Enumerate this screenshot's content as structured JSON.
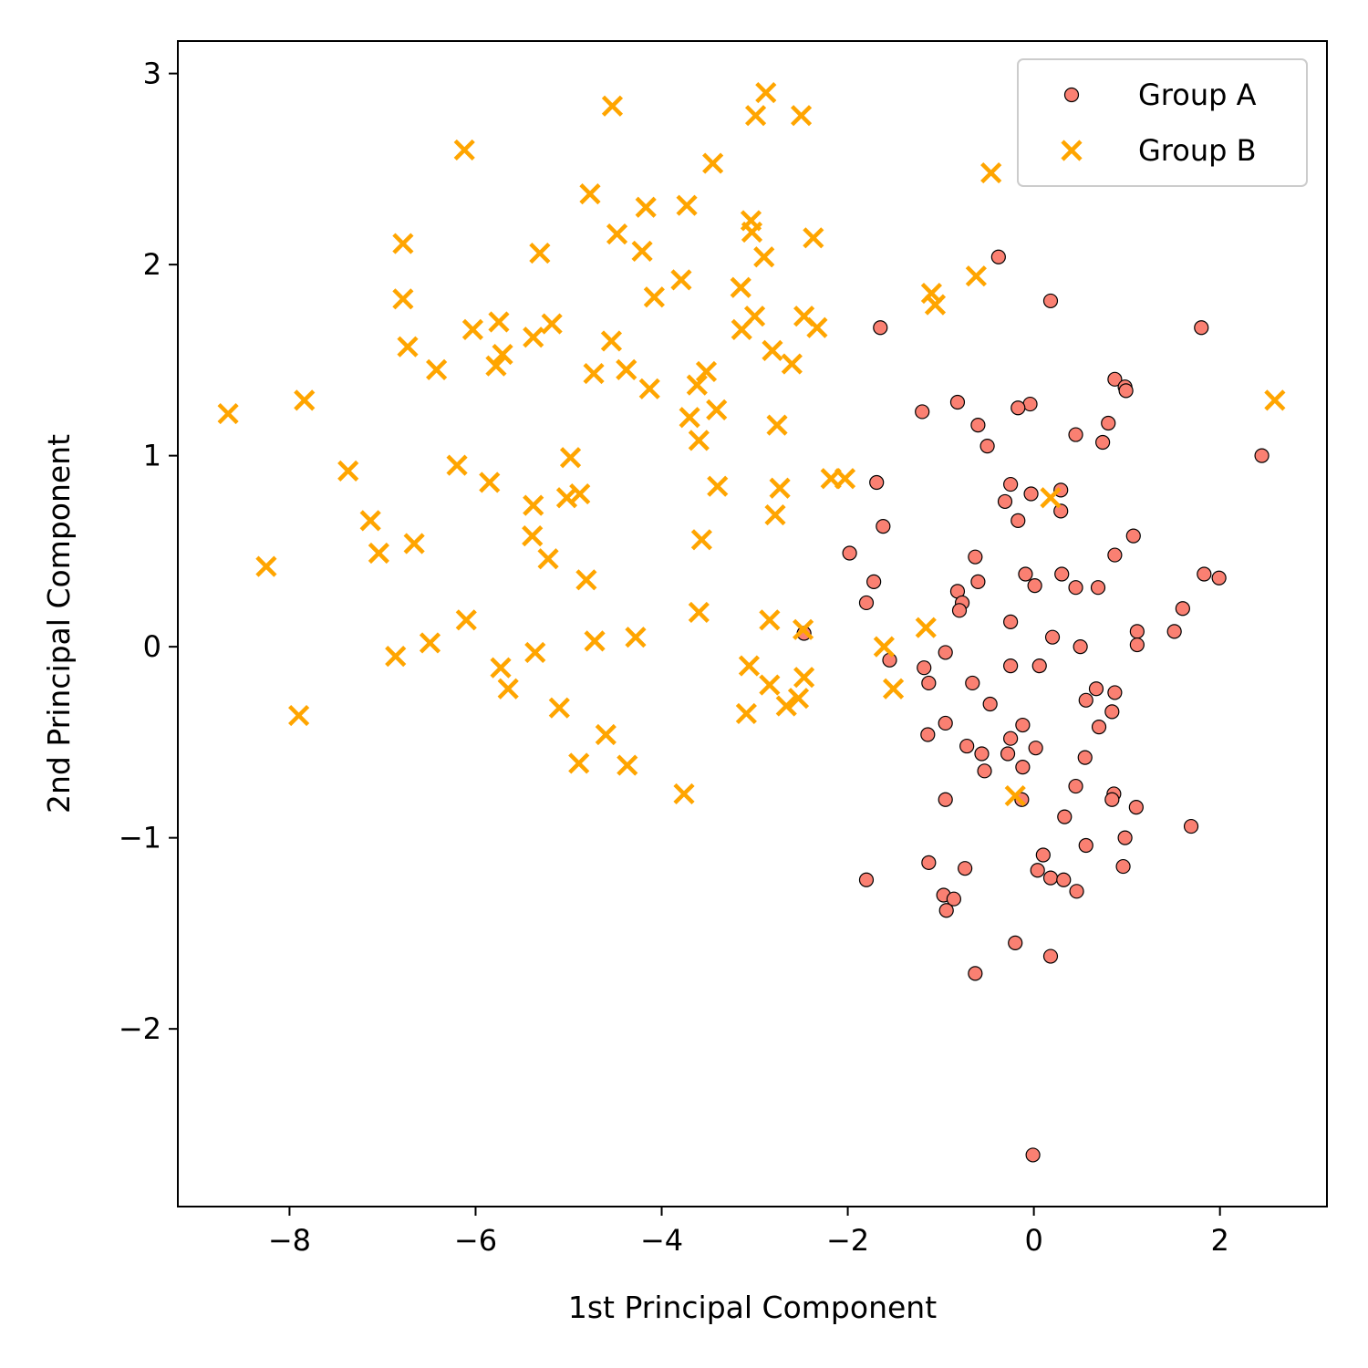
{
  "chart_data": {
    "type": "scatter",
    "xlabel": "1st Principal Component",
    "ylabel": "2nd Principal Component",
    "xlim": [
      -9.2,
      3.15
    ],
    "ylim": [
      -2.93,
      3.17
    ],
    "xticks": [
      -8,
      -6,
      -4,
      -2,
      0,
      2
    ],
    "yticks": [
      -2,
      -1,
      0,
      1,
      2,
      3
    ],
    "xtick_labels": [
      "−8",
      "−6",
      "−4",
      "−2",
      "0",
      "2"
    ],
    "ytick_labels": [
      "−2",
      "−1",
      "0",
      "1",
      "2",
      "3"
    ],
    "grid": false,
    "legend": {
      "position": "top-right"
    },
    "series": [
      {
        "name": "Group A",
        "marker": "circle",
        "color": "#fa8072",
        "edge_color": "#000000",
        "points": [
          [
            -0.38,
            2.04
          ],
          [
            0.18,
            1.81
          ],
          [
            1.8,
            1.67
          ],
          [
            -1.65,
            1.67
          ],
          [
            0.87,
            1.4
          ],
          [
            0.98,
            1.36
          ],
          [
            0.99,
            1.34
          ],
          [
            -0.82,
            1.28
          ],
          [
            -0.04,
            1.27
          ],
          [
            -0.17,
            1.25
          ],
          [
            -1.2,
            1.23
          ],
          [
            -0.6,
            1.16
          ],
          [
            0.8,
            1.17
          ],
          [
            0.45,
            1.11
          ],
          [
            0.74,
            1.07
          ],
          [
            -0.5,
            1.05
          ],
          [
            2.45,
            1.0
          ],
          [
            -1.69,
            0.86
          ],
          [
            -0.25,
            0.85
          ],
          [
            0.29,
            0.82
          ],
          [
            -0.03,
            0.8
          ],
          [
            -0.31,
            0.76
          ],
          [
            0.29,
            0.71
          ],
          [
            -0.17,
            0.66
          ],
          [
            -1.62,
            0.63
          ],
          [
            1.07,
            0.58
          ],
          [
            -1.98,
            0.49
          ],
          [
            0.87,
            0.48
          ],
          [
            -0.63,
            0.47
          ],
          [
            -0.09,
            0.38
          ],
          [
            0.3,
            0.38
          ],
          [
            1.83,
            0.38
          ],
          [
            1.99,
            0.36
          ],
          [
            -0.6,
            0.34
          ],
          [
            -1.72,
            0.34
          ],
          [
            0.01,
            0.32
          ],
          [
            0.45,
            0.31
          ],
          [
            0.69,
            0.31
          ],
          [
            -0.82,
            0.29
          ],
          [
            -0.77,
            0.23
          ],
          [
            -1.8,
            0.23
          ],
          [
            -0.8,
            0.19
          ],
          [
            1.6,
            0.2
          ],
          [
            -0.25,
            0.13
          ],
          [
            1.51,
            0.08
          ],
          [
            1.11,
            0.08
          ],
          [
            0.2,
            0.05
          ],
          [
            1.11,
            0.01
          ],
          [
            0.5,
            0.0
          ],
          [
            -0.95,
            -0.03
          ],
          [
            -1.55,
            -0.07
          ],
          [
            -1.18,
            -0.11
          ],
          [
            -0.25,
            -0.1
          ],
          [
            0.06,
            -0.1
          ],
          [
            -1.13,
            -0.19
          ],
          [
            -0.66,
            -0.19
          ],
          [
            0.67,
            -0.22
          ],
          [
            0.87,
            -0.24
          ],
          [
            0.56,
            -0.28
          ],
          [
            -0.47,
            -0.3
          ],
          [
            0.84,
            -0.34
          ],
          [
            -0.95,
            -0.4
          ],
          [
            -0.12,
            -0.41
          ],
          [
            0.7,
            -0.42
          ],
          [
            -1.14,
            -0.46
          ],
          [
            -0.25,
            -0.48
          ],
          [
            -0.72,
            -0.52
          ],
          [
            0.02,
            -0.53
          ],
          [
            -0.56,
            -0.56
          ],
          [
            -0.28,
            -0.56
          ],
          [
            0.55,
            -0.58
          ],
          [
            -0.12,
            -0.63
          ],
          [
            -0.53,
            -0.65
          ],
          [
            0.45,
            -0.73
          ],
          [
            0.86,
            -0.77
          ],
          [
            -0.13,
            -0.8
          ],
          [
            -0.95,
            -0.8
          ],
          [
            0.84,
            -0.8
          ],
          [
            1.1,
            -0.84
          ],
          [
            1.69,
            -0.94
          ],
          [
            0.33,
            -0.89
          ],
          [
            0.98,
            -1.0
          ],
          [
            0.56,
            -1.04
          ],
          [
            0.1,
            -1.09
          ],
          [
            -1.13,
            -1.13
          ],
          [
            0.96,
            -1.15
          ],
          [
            -0.74,
            -1.16
          ],
          [
            0.04,
            -1.17
          ],
          [
            -1.8,
            -1.22
          ],
          [
            0.18,
            -1.21
          ],
          [
            0.32,
            -1.22
          ],
          [
            0.46,
            -1.28
          ],
          [
            -0.97,
            -1.3
          ],
          [
            -0.86,
            -1.32
          ],
          [
            -0.94,
            -1.38
          ],
          [
            -0.2,
            -1.55
          ],
          [
            0.18,
            -1.62
          ],
          [
            -0.63,
            -1.71
          ],
          [
            -0.01,
            -2.66
          ],
          [
            -2.47,
            0.07
          ]
        ]
      },
      {
        "name": "Group B",
        "marker": "x",
        "color": "#ffa500",
        "points": [
          [
            -2.88,
            2.9
          ],
          [
            -4.53,
            2.83
          ],
          [
            -2.99,
            2.78
          ],
          [
            -2.5,
            2.78
          ],
          [
            -6.12,
            2.6
          ],
          [
            -3.45,
            2.53
          ],
          [
            -0.46,
            2.48
          ],
          [
            -4.77,
            2.37
          ],
          [
            -3.73,
            2.31
          ],
          [
            -4.17,
            2.3
          ],
          [
            -3.04,
            2.23
          ],
          [
            -3.03,
            2.17
          ],
          [
            -4.48,
            2.16
          ],
          [
            -2.37,
            2.14
          ],
          [
            -6.78,
            2.11
          ],
          [
            -4.21,
            2.07
          ],
          [
            -5.31,
            2.06
          ],
          [
            -2.9,
            2.04
          ],
          [
            -0.62,
            1.94
          ],
          [
            -3.79,
            1.92
          ],
          [
            -3.15,
            1.88
          ],
          [
            -1.1,
            1.85
          ],
          [
            -1.06,
            1.79
          ],
          [
            -6.78,
            1.82
          ],
          [
            -4.08,
            1.83
          ],
          [
            -3.0,
            1.73
          ],
          [
            -2.47,
            1.73
          ],
          [
            -5.75,
            1.7
          ],
          [
            -5.18,
            1.69
          ],
          [
            -2.33,
            1.67
          ],
          [
            -6.03,
            1.66
          ],
          [
            -3.14,
            1.66
          ],
          [
            -5.38,
            1.62
          ],
          [
            -4.54,
            1.6
          ],
          [
            -6.73,
            1.57
          ],
          [
            -2.81,
            1.55
          ],
          [
            -5.71,
            1.53
          ],
          [
            -5.78,
            1.47
          ],
          [
            -2.6,
            1.48
          ],
          [
            -6.42,
            1.45
          ],
          [
            -4.38,
            1.45
          ],
          [
            -3.52,
            1.44
          ],
          [
            -4.73,
            1.43
          ],
          [
            -3.62,
            1.37
          ],
          [
            -4.13,
            1.35
          ],
          [
            -7.84,
            1.29
          ],
          [
            2.59,
            1.29
          ],
          [
            -8.66,
            1.22
          ],
          [
            -3.41,
            1.24
          ],
          [
            -3.7,
            1.2
          ],
          [
            -2.76,
            1.16
          ],
          [
            -3.6,
            1.08
          ],
          [
            -4.98,
            0.99
          ],
          [
            -6.2,
            0.95
          ],
          [
            -7.37,
            0.92
          ],
          [
            -2.18,
            0.88
          ],
          [
            -2.03,
            0.88
          ],
          [
            -5.85,
            0.86
          ],
          [
            -3.4,
            0.84
          ],
          [
            -2.73,
            0.83
          ],
          [
            -4.88,
            0.8
          ],
          [
            -5.02,
            0.78
          ],
          [
            0.18,
            0.78
          ],
          [
            -5.38,
            0.74
          ],
          [
            -2.78,
            0.69
          ],
          [
            -7.13,
            0.66
          ],
          [
            -5.39,
            0.58
          ],
          [
            -3.57,
            0.56
          ],
          [
            -6.66,
            0.54
          ],
          [
            -7.04,
            0.49
          ],
          [
            -5.22,
            0.46
          ],
          [
            -8.25,
            0.42
          ],
          [
            -4.81,
            0.35
          ],
          [
            -3.6,
            0.18
          ],
          [
            -6.1,
            0.14
          ],
          [
            -2.84,
            0.14
          ],
          [
            -1.16,
            0.1
          ],
          [
            -2.48,
            0.09
          ],
          [
            -4.28,
            0.05
          ],
          [
            -4.72,
            0.03
          ],
          [
            -6.49,
            0.02
          ],
          [
            -1.61,
            0.0
          ],
          [
            -5.36,
            -0.03
          ],
          [
            -6.86,
            -0.05
          ],
          [
            -3.06,
            -0.1
          ],
          [
            -5.73,
            -0.11
          ],
          [
            -2.47,
            -0.16
          ],
          [
            -2.84,
            -0.2
          ],
          [
            -5.65,
            -0.22
          ],
          [
            -1.51,
            -0.22
          ],
          [
            -2.53,
            -0.27
          ],
          [
            -2.66,
            -0.31
          ],
          [
            -5.1,
            -0.32
          ],
          [
            -7.9,
            -0.36
          ],
          [
            -3.09,
            -0.35
          ],
          [
            -4.6,
            -0.46
          ],
          [
            -4.89,
            -0.61
          ],
          [
            -4.37,
            -0.62
          ],
          [
            -3.76,
            -0.77
          ],
          [
            -0.2,
            -0.78
          ]
        ]
      }
    ]
  }
}
